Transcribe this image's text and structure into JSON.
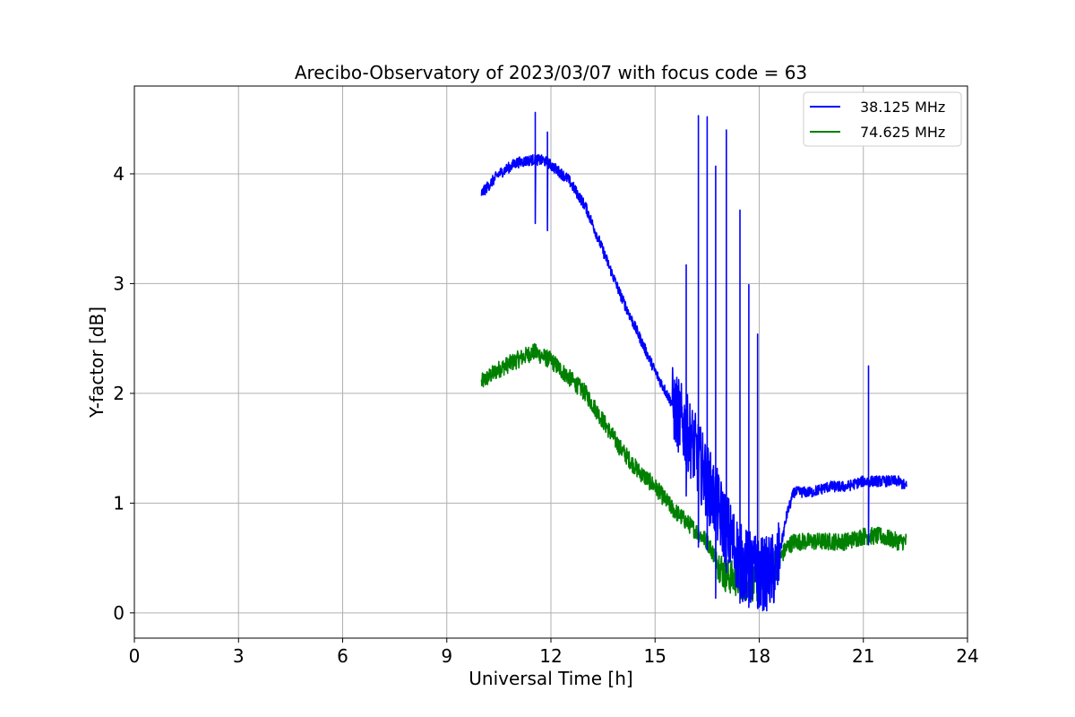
{
  "chart_data": {
    "type": "line",
    "title": "Arecibo-Observatory of 2023/03/07 with focus code = 63",
    "xlabel": "Universal Time [h]",
    "ylabel": "Y-factor [dB]",
    "xlim": [
      0,
      24
    ],
    "ylim": [
      -0.23,
      4.8
    ],
    "xticks": [
      0,
      3,
      6,
      9,
      12,
      15,
      18,
      21,
      24
    ],
    "yticks": [
      0,
      1,
      2,
      3,
      4
    ],
    "xtick_labels": [
      "0",
      "3",
      "6",
      "9",
      "12",
      "15",
      "18",
      "21",
      "24"
    ],
    "ytick_labels": [
      "0",
      "1",
      "2",
      "3",
      "4"
    ],
    "grid": true,
    "legend_position": "top-right",
    "series": [
      {
        "name": "38.125 MHz",
        "color": "#0000ff",
        "x": [
          10.0,
          10.5,
          11.0,
          11.5,
          11.8,
          12.0,
          12.5,
          13.0,
          13.5,
          14.0,
          14.5,
          15.0,
          15.5,
          16.0,
          16.5,
          17.0,
          17.5,
          18.0,
          18.2,
          18.5,
          18.8,
          19.0,
          19.5,
          20.0,
          20.5,
          21.0,
          21.5,
          22.0,
          22.25
        ],
        "y": [
          3.82,
          4.0,
          4.1,
          4.13,
          4.12,
          4.08,
          3.95,
          3.7,
          3.3,
          2.9,
          2.55,
          2.2,
          1.9,
          1.6,
          1.2,
          0.8,
          0.45,
          0.35,
          0.35,
          0.4,
          0.9,
          1.1,
          1.1,
          1.15,
          1.15,
          1.2,
          1.2,
          1.2,
          1.15
        ],
        "noise": 0.05,
        "spikes": [
          [
            11.55,
            4.56
          ],
          [
            11.9,
            4.38
          ],
          [
            15.9,
            3.17
          ],
          [
            16.25,
            4.53
          ],
          [
            16.5,
            4.52
          ],
          [
            16.75,
            4.07
          ],
          [
            17.05,
            4.4
          ],
          [
            17.45,
            3.67
          ],
          [
            17.7,
            2.99
          ],
          [
            17.95,
            2.54
          ],
          [
            21.15,
            2.25
          ]
        ]
      },
      {
        "name": "74.625 MHz",
        "color": "#008000",
        "x": [
          10.0,
          10.5,
          11.0,
          11.5,
          12.0,
          12.5,
          13.0,
          13.5,
          14.0,
          14.5,
          15.0,
          15.5,
          16.0,
          16.5,
          17.0,
          17.5,
          18.0,
          18.5,
          18.8,
          19.0,
          19.5,
          20.0,
          20.5,
          21.0,
          21.5,
          22.0,
          22.25
        ],
        "y": [
          2.1,
          2.22,
          2.3,
          2.38,
          2.3,
          2.15,
          2.0,
          1.75,
          1.5,
          1.3,
          1.15,
          0.95,
          0.8,
          0.65,
          0.35,
          0.28,
          0.25,
          0.45,
          0.6,
          0.65,
          0.65,
          0.65,
          0.65,
          0.7,
          0.7,
          0.65,
          0.65
        ],
        "noise": 0.08,
        "spikes": []
      }
    ]
  }
}
